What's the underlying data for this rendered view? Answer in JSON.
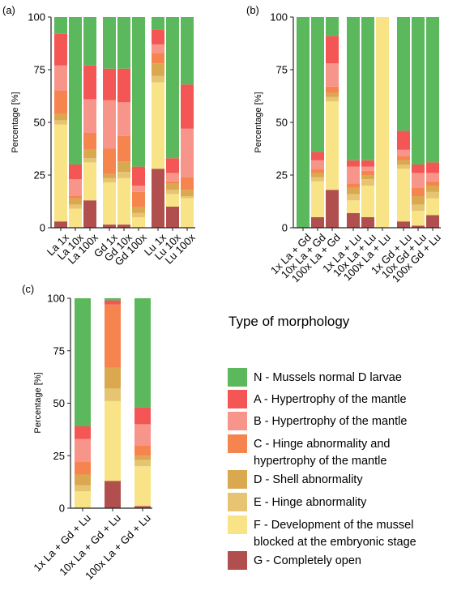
{
  "colors": {
    "N": "#5cb85c",
    "A": "#f45555",
    "B": "#f7958a",
    "C": "#f6844f",
    "D": "#daa84e",
    "E": "#e6c472",
    "F": "#f8e487",
    "G": "#b14f4f"
  },
  "legend": {
    "title": "Type of morphology",
    "items": [
      {
        "key": "N",
        "lines": [
          "N - Mussels normal D larvae"
        ]
      },
      {
        "key": "A",
        "lines": [
          "A - Hypertrophy of the mantle"
        ]
      },
      {
        "key": "B",
        "lines": [
          "B - Hypertrophy of the mantle"
        ]
      },
      {
        "key": "C",
        "lines": [
          "C - Hinge abnormality and",
          "hypertrophy of the mantle"
        ]
      },
      {
        "key": "D",
        "lines": [
          "D - Shell abnormality"
        ]
      },
      {
        "key": "E",
        "lines": [
          "E - Hinge abnormality"
        ]
      },
      {
        "key": "F",
        "lines": [
          "F - Development of the mussel",
          "blocked at the embryonic stage"
        ]
      },
      {
        "key": "G",
        "lines": [
          "G - Completely open"
        ]
      }
    ]
  },
  "chart_data": [
    {
      "type": "bar",
      "stacked": true,
      "panel_label": "(a)",
      "ylabel": "Percentage [%]",
      "ylim": [
        0,
        100
      ],
      "yticks": [
        0,
        25,
        50,
        75,
        100
      ],
      "stack_order": [
        "G",
        "F",
        "E",
        "D",
        "C",
        "B",
        "A",
        "N"
      ],
      "categories": [
        "La 1x",
        "La 10x",
        "La 100x",
        "Gd 1x",
        "Gd 10x",
        "Gd 100x",
        "Lu 1x",
        "Lu 10x",
        "Lu 100x"
      ],
      "groups": [
        [
          "La 1x",
          "La 10x",
          "La 100x"
        ],
        [
          "Gd 1x",
          "Gd 10x",
          "Gd 100x"
        ],
        [
          "Lu 1x",
          "Lu 10x",
          "Lu 100x"
        ]
      ],
      "series": [
        {
          "key": "G",
          "values": [
            3,
            0,
            13,
            1.5,
            1.5,
            0,
            28,
            10,
            0
          ]
        },
        {
          "key": "F",
          "values": [
            46,
            9,
            18,
            20,
            22,
            5,
            41,
            6,
            14
          ]
        },
        {
          "key": "E",
          "values": [
            2,
            2,
            2,
            2,
            3,
            2,
            3,
            2,
            1
          ]
        },
        {
          "key": "D",
          "values": [
            3,
            3,
            4,
            2,
            5,
            3,
            6,
            3,
            3
          ]
        },
        {
          "key": "C",
          "values": [
            11,
            1,
            8,
            12,
            12,
            7,
            5,
            1,
            6
          ]
        },
        {
          "key": "B",
          "values": [
            12,
            8,
            16,
            23,
            16,
            3,
            4,
            4,
            23
          ]
        },
        {
          "key": "A",
          "values": [
            15,
            7,
            16,
            15,
            16,
            9,
            7,
            7,
            21
          ]
        },
        {
          "key": "N",
          "values": [
            8,
            70,
            23,
            24.5,
            24.5,
            71,
            6,
            67,
            32
          ]
        }
      ]
    },
    {
      "type": "bar",
      "stacked": true,
      "panel_label": "(b)",
      "ylabel": "Percentage [%]",
      "ylim": [
        0,
        100
      ],
      "yticks": [
        0,
        25,
        50,
        75,
        100
      ],
      "stack_order": [
        "G",
        "F",
        "E",
        "D",
        "C",
        "B",
        "A",
        "N"
      ],
      "categories": [
        "1x La + Gd",
        "10x La + Gd",
        "100x La + Gd",
        "1x La + Lu",
        "10x La + Lu",
        "100x La + Lu",
        "1x Gd + Lu",
        "10x Gd + Lu",
        "100x Gd + Lu"
      ],
      "groups": [
        [
          "1x La + Gd",
          "10x La + Gd",
          "100x La + Gd"
        ],
        [
          "1x La + Lu",
          "10x La + Lu",
          "100x La + Lu"
        ],
        [
          "1x Gd + Lu",
          "10x Gd + Lu",
          "100x Gd + Lu"
        ]
      ],
      "series": [
        {
          "key": "G",
          "values": [
            0,
            5,
            18,
            7,
            5,
            0,
            3,
            1,
            6
          ]
        },
        {
          "key": "F",
          "values": [
            0,
            17,
            42,
            6,
            15,
            100,
            25,
            7,
            8
          ]
        },
        {
          "key": "E",
          "values": [
            0,
            2,
            2,
            3,
            3,
            0,
            2,
            3,
            3
          ]
        },
        {
          "key": "D",
          "values": [
            0,
            2,
            2,
            3,
            2,
            0,
            2,
            4,
            3
          ]
        },
        {
          "key": "C",
          "values": [
            0,
            2,
            3,
            2,
            2,
            0,
            2,
            4,
            2
          ]
        },
        {
          "key": "B",
          "values": [
            0,
            4,
            11,
            8,
            2,
            0,
            3,
            7,
            4
          ]
        },
        {
          "key": "A",
          "values": [
            0,
            4,
            13,
            3,
            3,
            0,
            9,
            4,
            5
          ]
        },
        {
          "key": "N",
          "values": [
            100,
            64,
            9,
            68,
            68,
            0,
            54,
            70,
            69
          ]
        }
      ]
    },
    {
      "type": "bar",
      "stacked": true,
      "panel_label": "(c)",
      "ylabel": "Percentage [%]",
      "ylim": [
        0,
        100
      ],
      "yticks": [
        0,
        25,
        50,
        75,
        100
      ],
      "stack_order": [
        "G",
        "F",
        "E",
        "D",
        "C",
        "B",
        "A",
        "N"
      ],
      "categories": [
        "1x La + Gd + Lu",
        "10x La + Gd + Lu",
        "100x La + Gd + Lu"
      ],
      "groups": [
        [
          "1x La + Gd + Lu",
          "10x La + Gd + Lu",
          "100x La + Gd + Lu"
        ]
      ],
      "series": [
        {
          "key": "G",
          "values": [
            0,
            13,
            1
          ]
        },
        {
          "key": "F",
          "values": [
            8,
            38,
            19
          ]
        },
        {
          "key": "E",
          "values": [
            3,
            6,
            3
          ]
        },
        {
          "key": "D",
          "values": [
            5,
            10,
            2
          ]
        },
        {
          "key": "C",
          "values": [
            6,
            30,
            5
          ]
        },
        {
          "key": "B",
          "values": [
            11,
            0,
            10
          ]
        },
        {
          "key": "A",
          "values": [
            6,
            2,
            8
          ]
        },
        {
          "key": "N",
          "values": [
            61,
            1,
            52
          ]
        }
      ]
    }
  ]
}
